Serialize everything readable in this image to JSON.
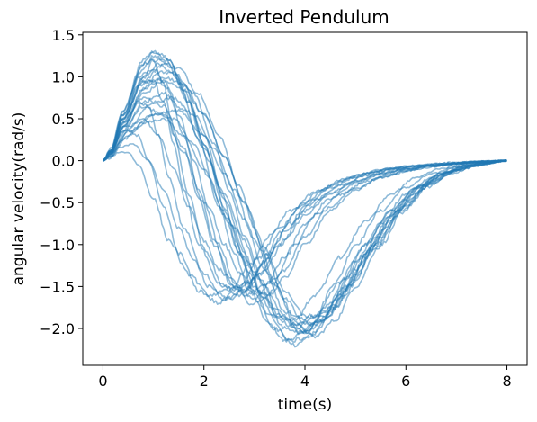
{
  "chart_data": {
    "type": "line",
    "title": "Inverted Pendulum",
    "xlabel": "time(s)",
    "ylabel": "angular velocity(rad/s)",
    "xlim": [
      -0.4,
      8.4
    ],
    "ylim": [
      -2.44,
      1.53
    ],
    "xticks": [
      0,
      2,
      4,
      6,
      8
    ],
    "yticks": [
      -2.0,
      -1.5,
      -1.0,
      -0.5,
      0.0,
      0.5,
      1.0,
      1.5
    ],
    "xtick_labels": [
      "0",
      "2",
      "4",
      "6",
      "8"
    ],
    "ytick_labels": [
      "−2.0",
      "−1.5",
      "−1.0",
      "−0.5",
      "0.0",
      "0.5",
      "1.0",
      "1.5"
    ],
    "grid": false,
    "legend": "none",
    "line_color": "#1f77b4",
    "line_opacity": 0.5,
    "series": [
      {
        "x": [
          0,
          0.15,
          0.4,
          0.8,
          1.0,
          1.2,
          1.5,
          1.9,
          2.3,
          2.6,
          2.9,
          3.3,
          3.6,
          4.0,
          4.5,
          5.0,
          5.5,
          6.0,
          6.5,
          7.0,
          7.5,
          8.0
        ],
        "y": [
          0.0,
          0.12,
          0.55,
          1.15,
          1.3,
          1.25,
          0.95,
          0.25,
          -0.55,
          -1.1,
          -1.55,
          -1.95,
          -2.15,
          -2.05,
          -1.7,
          -1.2,
          -0.75,
          -0.4,
          -0.2,
          -0.08,
          -0.03,
          0.0
        ]
      },
      {
        "x": [
          0,
          0.15,
          0.4,
          0.8,
          1.0,
          1.3,
          1.6,
          2.0,
          2.4,
          2.8,
          3.1,
          3.5,
          3.8,
          4.2,
          4.6,
          5.0,
          5.5,
          6.0,
          6.5,
          7.0,
          7.5,
          8.0
        ],
        "y": [
          0.0,
          0.1,
          0.45,
          1.0,
          1.2,
          1.2,
          0.9,
          0.3,
          -0.45,
          -1.1,
          -1.55,
          -1.9,
          -2.0,
          -1.85,
          -1.45,
          -1.0,
          -0.6,
          -0.32,
          -0.16,
          -0.07,
          -0.03,
          0.0
        ]
      },
      {
        "x": [
          0,
          0.15,
          0.4,
          0.8,
          1.1,
          1.4,
          1.8,
          2.2,
          2.5,
          2.8,
          3.2,
          3.6,
          4.0,
          4.4,
          4.8,
          5.3,
          5.8,
          6.3,
          6.8,
          7.3,
          8.0
        ],
        "y": [
          0.0,
          0.08,
          0.4,
          0.85,
          1.05,
          1.05,
          0.8,
          0.2,
          -0.35,
          -0.9,
          -1.5,
          -1.9,
          -2.05,
          -1.9,
          -1.55,
          -1.05,
          -0.6,
          -0.3,
          -0.14,
          -0.06,
          0.0
        ]
      },
      {
        "x": [
          0,
          0.15,
          0.4,
          0.8,
          1.2,
          1.5,
          1.9,
          2.3,
          2.7,
          3.0,
          3.4,
          3.8,
          4.2,
          4.6,
          5.0,
          5.5,
          6.0,
          6.5,
          7.0,
          7.5,
          8.0
        ],
        "y": [
          0.0,
          0.1,
          0.5,
          0.95,
          1.15,
          1.1,
          0.8,
          0.3,
          -0.3,
          -0.8,
          -1.45,
          -1.95,
          -2.1,
          -1.9,
          -1.5,
          -1.0,
          -0.55,
          -0.28,
          -0.12,
          -0.05,
          0.0
        ]
      },
      {
        "x": [
          0,
          0.15,
          0.4,
          0.8,
          1.2,
          1.6,
          2.0,
          2.4,
          2.8,
          3.2,
          3.6,
          4.0,
          4.4,
          4.8,
          5.2,
          5.7,
          6.2,
          6.7,
          7.2,
          7.6,
          8.0
        ],
        "y": [
          0.0,
          0.08,
          0.4,
          0.8,
          0.95,
          0.85,
          0.55,
          0.05,
          -0.5,
          -1.1,
          -1.65,
          -1.95,
          -1.9,
          -1.6,
          -1.15,
          -0.7,
          -0.38,
          -0.18,
          -0.08,
          -0.03,
          0.0
        ]
      },
      {
        "x": [
          0,
          0.15,
          0.5,
          1.0,
          1.4,
          1.8,
          2.2,
          2.6,
          3.0,
          3.4,
          3.8,
          4.2,
          4.6,
          5.0,
          5.4,
          5.9,
          6.4,
          6.9,
          7.4,
          8.0
        ],
        "y": [
          0.0,
          0.08,
          0.4,
          0.7,
          0.75,
          0.55,
          0.15,
          -0.35,
          -0.95,
          -1.5,
          -1.85,
          -1.95,
          -1.75,
          -1.4,
          -1.0,
          -0.6,
          -0.3,
          -0.13,
          -0.05,
          0.0
        ]
      },
      {
        "x": [
          0,
          0.15,
          0.5,
          1.0,
          1.5,
          2.0,
          2.4,
          2.8,
          3.2,
          3.6,
          4.0,
          4.5,
          5.0,
          5.5,
          6.0,
          6.5,
          7.0,
          7.5,
          8.0
        ],
        "y": [
          0.0,
          0.05,
          0.3,
          0.55,
          0.6,
          0.3,
          -0.15,
          -0.7,
          -1.3,
          -1.8,
          -2.0,
          -1.75,
          -1.3,
          -0.85,
          -0.48,
          -0.24,
          -0.1,
          -0.04,
          0.0
        ]
      },
      {
        "x": [
          0,
          0.15,
          0.4,
          0.8,
          1.0,
          1.2,
          1.4,
          1.7,
          2.0,
          2.4,
          2.8,
          3.2,
          3.6,
          4.0,
          4.5,
          5.0,
          5.5,
          6.0,
          6.5,
          7.0,
          7.5,
          8.0
        ],
        "y": [
          0.0,
          0.12,
          0.6,
          1.15,
          1.2,
          0.9,
          0.3,
          -0.4,
          -1.05,
          -1.5,
          -1.55,
          -1.3,
          -0.95,
          -0.65,
          -0.4,
          -0.25,
          -0.15,
          -0.1,
          -0.06,
          -0.03,
          -0.01,
          0.0
        ]
      },
      {
        "x": [
          0,
          0.15,
          0.4,
          0.7,
          1.0,
          1.2,
          1.4,
          1.6,
          1.9,
          2.3,
          2.7,
          3.1,
          3.5,
          4.0,
          4.5,
          5.0,
          5.5,
          6.0,
          6.5,
          7.0,
          7.5,
          8.0
        ],
        "y": [
          0.0,
          0.1,
          0.5,
          0.9,
          0.95,
          0.7,
          0.2,
          -0.35,
          -1.0,
          -1.45,
          -1.6,
          -1.35,
          -1.0,
          -0.6,
          -0.38,
          -0.24,
          -0.16,
          -0.1,
          -0.06,
          -0.03,
          -0.01,
          0.0
        ]
      },
      {
        "x": [
          0,
          0.15,
          0.4,
          0.7,
          0.9,
          1.1,
          1.3,
          1.6,
          2.0,
          2.4,
          2.8,
          3.2,
          3.6,
          4.0,
          4.5,
          5.0,
          5.5,
          6.0,
          6.5,
          7.0,
          7.5,
          8.0
        ],
        "y": [
          0.0,
          0.08,
          0.4,
          0.7,
          0.65,
          0.3,
          -0.2,
          -0.8,
          -1.35,
          -1.65,
          -1.55,
          -1.2,
          -0.85,
          -0.55,
          -0.33,
          -0.2,
          -0.12,
          -0.08,
          -0.05,
          -0.03,
          -0.01,
          0.0
        ]
      },
      {
        "x": [
          0,
          0.15,
          0.3,
          0.5,
          0.7,
          0.9,
          1.2,
          1.5,
          1.9,
          2.3,
          2.7,
          3.1,
          3.5,
          4.0,
          4.5,
          5.0,
          5.5,
          6.0,
          6.5,
          7.0,
          7.5,
          8.0
        ],
        "y": [
          0.0,
          0.05,
          0.2,
          0.35,
          0.3,
          0.0,
          -0.55,
          -1.1,
          -1.55,
          -1.7,
          -1.5,
          -1.15,
          -0.8,
          -0.5,
          -0.3,
          -0.18,
          -0.11,
          -0.07,
          -0.04,
          -0.02,
          -0.01,
          0.0
        ]
      },
      {
        "x": [
          0,
          0.15,
          0.3,
          0.5,
          0.7,
          1.0,
          1.3,
          1.7,
          2.1,
          2.5,
          2.9,
          3.3,
          3.7,
          4.2,
          4.7,
          5.2,
          5.7,
          6.2,
          6.7,
          7.2,
          7.6,
          8.0
        ],
        "y": [
          0.0,
          0.03,
          0.1,
          0.1,
          -0.05,
          -0.45,
          -0.95,
          -1.35,
          -1.6,
          -1.55,
          -1.25,
          -0.9,
          -0.6,
          -0.38,
          -0.24,
          -0.15,
          -0.09,
          -0.06,
          -0.04,
          -0.02,
          -0.01,
          0.0
        ]
      },
      {
        "x": [
          0,
          0.15,
          0.4,
          0.8,
          1.2,
          1.6,
          1.9,
          2.2,
          2.6,
          3.0,
          3.4,
          3.8,
          4.2,
          4.7,
          5.2,
          5.7,
          6.2,
          6.7,
          7.2,
          7.6,
          8.0
        ],
        "y": [
          0.0,
          0.1,
          0.45,
          0.75,
          0.65,
          0.15,
          -0.45,
          -1.0,
          -1.5,
          -1.65,
          -1.4,
          -1.0,
          -0.65,
          -0.4,
          -0.25,
          -0.16,
          -0.1,
          -0.06,
          -0.03,
          -0.01,
          0.0
        ]
      },
      {
        "x": [
          0,
          0.15,
          0.4,
          0.8,
          1.0,
          1.3,
          1.7,
          2.1,
          2.5,
          2.9,
          3.3,
          3.7,
          4.1,
          4.6,
          5.0,
          5.5,
          6.0,
          6.5,
          7.0,
          7.5,
          8.0
        ],
        "y": [
          0.0,
          0.12,
          0.55,
          1.1,
          1.25,
          1.15,
          0.7,
          0.0,
          -0.75,
          -1.35,
          -1.85,
          -2.15,
          -2.1,
          -1.75,
          -1.35,
          -0.9,
          -0.52,
          -0.26,
          -0.11,
          -0.04,
          0.0
        ]
      },
      {
        "x": [
          0,
          0.15,
          0.4,
          0.8,
          1.2,
          1.5,
          1.8,
          2.1,
          2.4,
          2.7,
          3.0,
          3.3,
          3.6,
          4.0,
          4.5,
          5.0,
          5.5,
          6.0,
          6.5,
          7.0,
          7.5,
          8.0
        ],
        "y": [
          0.0,
          0.12,
          0.5,
          0.95,
          0.95,
          0.55,
          0.0,
          -0.55,
          -1.0,
          -1.35,
          -1.55,
          -1.6,
          -1.4,
          -1.0,
          -0.6,
          -0.35,
          -0.2,
          -0.12,
          -0.07,
          -0.04,
          -0.02,
          0.0
        ]
      },
      {
        "x": [
          0,
          0.15,
          0.4,
          0.8,
          1.1,
          1.4,
          1.7,
          2.0,
          2.3,
          2.6,
          2.9,
          3.2,
          3.5,
          3.9,
          4.3,
          4.8,
          5.3,
          5.8,
          6.3,
          6.8,
          7.4,
          8.0
        ],
        "y": [
          0.0,
          0.1,
          0.35,
          0.5,
          0.3,
          -0.1,
          -0.55,
          -0.95,
          -1.3,
          -1.5,
          -1.45,
          -1.2,
          -0.85,
          -0.55,
          -0.35,
          -0.22,
          -0.14,
          -0.09,
          -0.05,
          -0.03,
          -0.01,
          0.0
        ]
      },
      {
        "x": [
          0,
          0.15,
          0.4,
          0.8,
          1.2,
          1.6,
          2.0,
          2.3,
          2.6,
          2.9,
          3.2,
          3.6,
          4.0,
          4.5,
          5.0,
          5.5,
          6.0,
          6.5,
          7.0,
          7.5,
          8.0
        ],
        "y": [
          0.0,
          0.1,
          0.4,
          0.65,
          0.55,
          0.1,
          -0.5,
          -1.0,
          -1.45,
          -1.7,
          -1.65,
          -1.3,
          -0.9,
          -0.55,
          -0.33,
          -0.2,
          -0.12,
          -0.07,
          -0.04,
          -0.02,
          0.0
        ]
      },
      {
        "x": [
          0,
          0.15,
          0.4,
          0.7,
          1.0,
          1.3,
          1.6,
          1.9,
          2.2,
          2.5,
          2.8,
          3.2,
          3.6,
          4.0,
          4.5,
          5.0,
          5.5,
          6.0,
          6.5,
          7.0,
          7.5,
          8.0
        ],
        "y": [
          0.0,
          0.12,
          0.55,
          1.0,
          1.1,
          0.85,
          0.3,
          -0.35,
          -0.95,
          -1.4,
          -1.6,
          -1.5,
          -1.15,
          -0.75,
          -0.45,
          -0.27,
          -0.16,
          -0.1,
          -0.06,
          -0.03,
          -0.01,
          0.0
        ]
      },
      {
        "x": [
          0,
          0.15,
          0.4,
          0.8,
          1.2,
          1.6,
          2.0,
          2.4,
          2.8,
          3.2,
          3.6,
          4.0,
          4.4,
          4.8,
          5.2,
          5.7,
          6.2,
          6.7,
          7.2,
          7.6,
          8.0
        ],
        "y": [
          0.0,
          0.05,
          0.25,
          0.45,
          0.5,
          0.3,
          -0.1,
          -0.6,
          -1.15,
          -1.65,
          -2.0,
          -2.05,
          -1.8,
          -1.4,
          -1.0,
          -0.6,
          -0.32,
          -0.15,
          -0.06,
          -0.02,
          0.0
        ]
      },
      {
        "x": [
          0,
          0.15,
          0.4,
          0.8,
          1.0,
          1.3,
          1.6,
          2.0,
          2.4,
          2.7,
          3.0,
          3.4,
          3.8,
          4.2,
          4.7,
          5.2,
          5.7,
          6.2,
          6.7,
          7.2,
          7.6,
          8.0
        ],
        "y": [
          0.0,
          0.15,
          0.6,
          1.2,
          1.3,
          1.2,
          0.85,
          0.2,
          -0.55,
          -1.1,
          -1.6,
          -2.0,
          -2.2,
          -2.05,
          -1.6,
          -1.1,
          -0.65,
          -0.34,
          -0.16,
          -0.06,
          -0.02,
          0.0
        ]
      },
      {
        "x": [
          0,
          0.15,
          0.5,
          1.0,
          1.4,
          1.8,
          2.1,
          2.4,
          2.7,
          3.0,
          3.4,
          3.8,
          4.2,
          4.7,
          5.2,
          5.7,
          6.2,
          6.7,
          7.2,
          7.6,
          8.0
        ],
        "y": [
          0.0,
          0.08,
          0.35,
          0.55,
          0.5,
          0.2,
          -0.2,
          -0.65,
          -1.1,
          -1.5,
          -1.85,
          -1.9,
          -1.6,
          -1.15,
          -0.72,
          -0.4,
          -0.2,
          -0.09,
          -0.04,
          -0.01,
          0.0
        ]
      },
      {
        "x": [
          0,
          0.15,
          0.4,
          0.8,
          1.1,
          1.4,
          1.7,
          2.0,
          2.3,
          2.6,
          3.0,
          3.4,
          3.8,
          4.2,
          4.7,
          5.2,
          5.7,
          6.2,
          6.7,
          7.2,
          7.6,
          8.0
        ],
        "y": [
          0.0,
          0.1,
          0.5,
          1.0,
          1.15,
          1.05,
          0.7,
          0.2,
          -0.3,
          -0.8,
          -1.35,
          -1.75,
          -1.95,
          -1.85,
          -1.45,
          -1.0,
          -0.6,
          -0.32,
          -0.15,
          -0.06,
          -0.02,
          0.0
        ]
      },
      {
        "x": [
          0,
          0.15,
          0.4,
          0.8,
          1.2,
          1.6,
          2.0,
          2.4,
          2.8,
          3.2,
          3.6,
          4.0,
          4.4,
          4.9,
          5.4,
          5.9,
          6.4,
          6.9,
          7.4,
          8.0
        ],
        "y": [
          0.0,
          0.1,
          0.45,
          0.85,
          1.0,
          0.9,
          0.55,
          0.05,
          -0.5,
          -1.05,
          -1.55,
          -1.85,
          -1.85,
          -1.5,
          -1.05,
          -0.62,
          -0.32,
          -0.15,
          -0.06,
          0.0
        ]
      },
      {
        "x": [
          0,
          0.15,
          0.4,
          0.8,
          1.2,
          1.6,
          2.0,
          2.4,
          2.8,
          3.1,
          3.5,
          3.9,
          4.3,
          4.8,
          5.3,
          5.8,
          6.3,
          6.8,
          7.3,
          7.7,
          8.0
        ],
        "y": [
          0.0,
          0.08,
          0.35,
          0.7,
          0.8,
          0.6,
          0.15,
          -0.4,
          -0.95,
          -1.4,
          -1.85,
          -2.05,
          -1.9,
          -1.5,
          -1.05,
          -0.62,
          -0.32,
          -0.15,
          -0.06,
          -0.02,
          0.0
        ]
      },
      {
        "x": [
          0,
          0.15,
          0.3,
          0.6,
          0.9,
          1.2,
          1.5,
          1.8,
          2.1,
          2.5,
          2.9,
          3.3,
          3.7,
          4.2,
          4.7,
          5.2,
          5.7,
          6.2,
          6.7,
          7.2,
          7.6,
          8.0
        ],
        "y": [
          0.0,
          0.05,
          0.15,
          0.2,
          0.0,
          -0.35,
          -0.8,
          -1.2,
          -1.5,
          -1.65,
          -1.45,
          -1.1,
          -0.75,
          -0.47,
          -0.29,
          -0.18,
          -0.11,
          -0.07,
          -0.04,
          -0.02,
          -0.01,
          0.0
        ]
      }
    ]
  }
}
